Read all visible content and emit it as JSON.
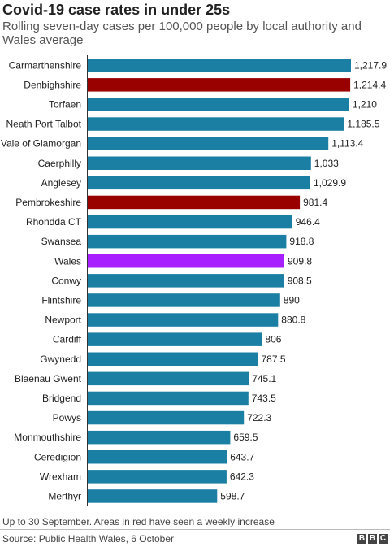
{
  "title": "Covid-19 case rates in under 25s",
  "subtitle": "Rolling seven-day cases per 100,000 people by local authority and Wales average",
  "footnote": "Up to 30 September. Areas in red have seen a weekly increase",
  "source": "Source: Public Health Wales, 6 October",
  "logo": [
    "B",
    "B",
    "C"
  ],
  "colors": {
    "default": "#1a7fa3",
    "increase": "#990000",
    "wales_average": "#a81fff"
  },
  "chart_data": {
    "type": "bar",
    "orientation": "horizontal",
    "title": "Covid-19 case rates in under 25s",
    "xlabel": "",
    "ylabel": "",
    "grid": false,
    "xlim": [
      0,
      1217.9
    ],
    "categories": [
      "Carmarthenshire",
      "Denbighshire",
      "Torfaen",
      "Neath Port Talbot",
      "Vale of Glamorgan",
      "Caerphilly",
      "Anglesey",
      "Pembrokeshire",
      "Rhondda CT",
      "Swansea",
      "Wales",
      "Conwy",
      "Flintshire",
      "Newport",
      "Cardiff",
      "Gwynedd",
      "Blaenau Gwent",
      "Bridgend",
      "Powys",
      "Monmouthshire",
      "Ceredigion",
      "Wrexham",
      "Merthyr"
    ],
    "values": [
      1217.9,
      1214.4,
      1210,
      1185.5,
      1113.4,
      1033,
      1029.9,
      981.4,
      946.4,
      918.8,
      909.8,
      908.5,
      890,
      880.8,
      806,
      787.5,
      745.1,
      743.5,
      722.3,
      659.5,
      643.7,
      642.3,
      598.7
    ],
    "value_labels": [
      "1,217.9",
      "1,214.4",
      "1,210",
      "1,185.5",
      "1,113.4",
      "1,033",
      "1,029.9",
      "981.4",
      "946.4",
      "918.8",
      "909.8",
      "908.5",
      "890",
      "880.8",
      "806",
      "787.5",
      "745.1",
      "743.5",
      "722.3",
      "659.5",
      "643.7",
      "642.3",
      "598.7"
    ],
    "bar_colors": [
      "default",
      "increase",
      "default",
      "default",
      "default",
      "default",
      "default",
      "increase",
      "default",
      "default",
      "wales_average",
      "default",
      "default",
      "default",
      "default",
      "default",
      "default",
      "default",
      "default",
      "default",
      "default",
      "default",
      "default"
    ]
  }
}
